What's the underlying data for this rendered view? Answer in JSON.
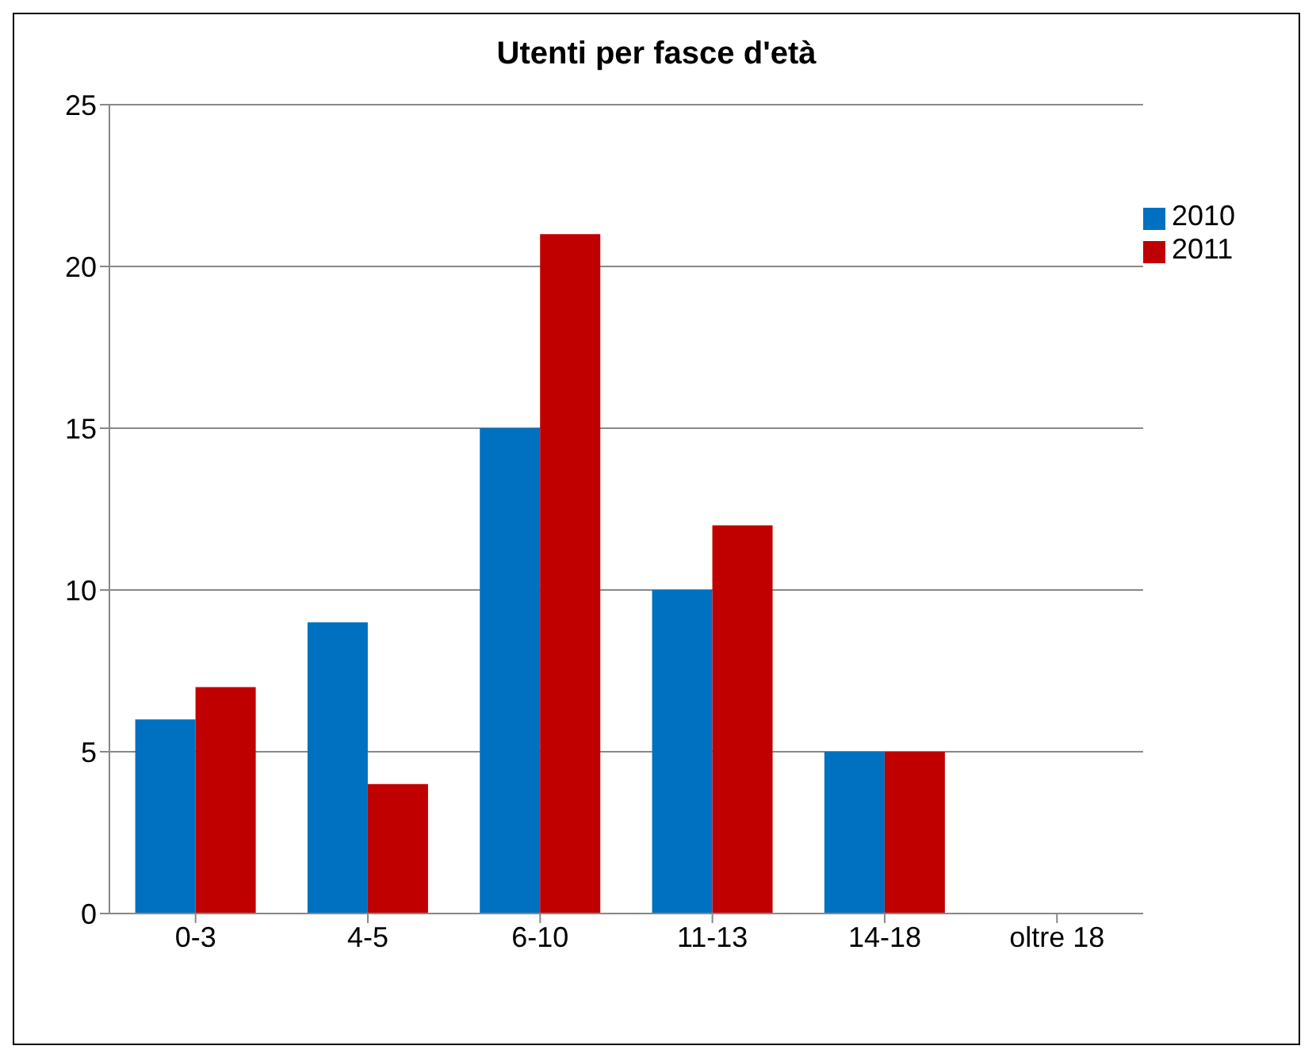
{
  "chart_data": {
    "type": "bar",
    "title": "Utenti per fasce d'età",
    "categories": [
      "0-3",
      "4-5",
      "6-10",
      "11-13",
      "14-18",
      "oltre 18"
    ],
    "series": [
      {
        "name": "2010",
        "color": "#0070c0",
        "values": [
          6,
          9,
          15,
          10,
          5,
          0
        ]
      },
      {
        "name": "2011",
        "color": "#c00000",
        "values": [
          7,
          4,
          21,
          12,
          5,
          0
        ]
      }
    ],
    "ylim": [
      0,
      25
    ],
    "yticks": [
      0,
      5,
      10,
      15,
      20,
      25
    ],
    "grid": "y",
    "legend": "top right"
  }
}
